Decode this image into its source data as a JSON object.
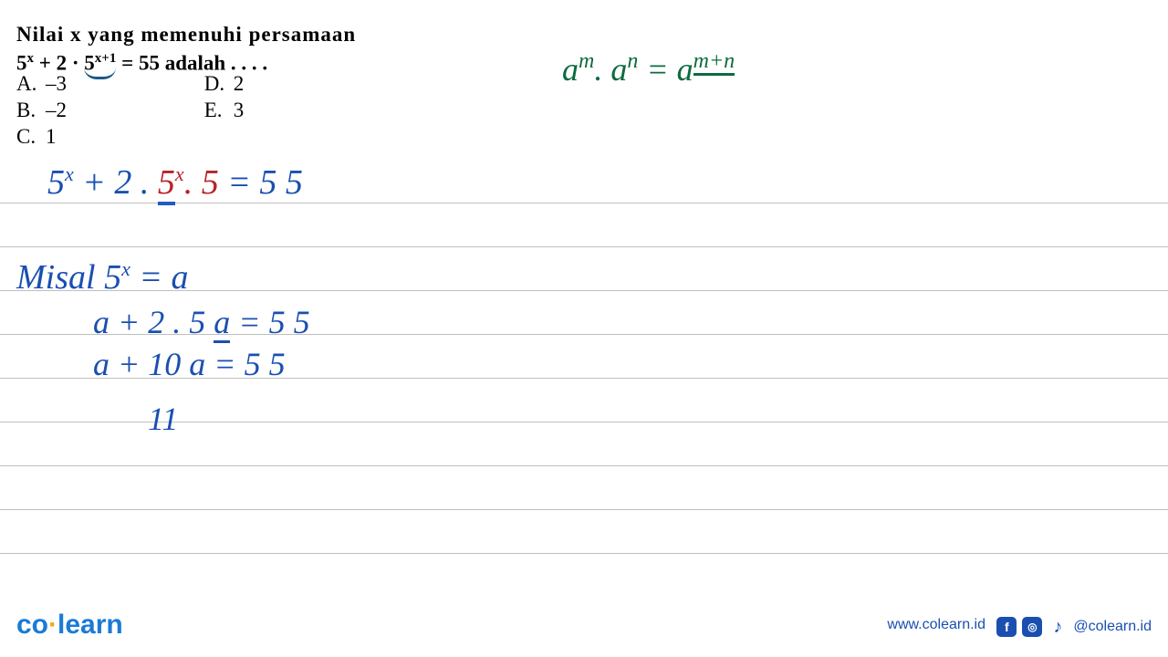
{
  "question": {
    "prompt": "Nilai  x  yang  memenuhi  persamaan",
    "equation_prefix": "5",
    "equation_exp1": "x",
    "equation_mid": " + 2 · ",
    "equation_base2": "5",
    "equation_exp2": "x+1",
    "equation_suffix": " = 55 adalah . . . .",
    "text_color": "#000000",
    "fontsize": 23
  },
  "options": {
    "A": "–3",
    "B": "–2",
    "C": "1",
    "D": "2",
    "E": "3"
  },
  "rule_annotation": {
    "color": "#0d6b3f",
    "a1": "a",
    "m": "m",
    "dot": ". ",
    "a2": "a",
    "n": "n",
    "eq": " = ",
    "a3": "a",
    "mn": "m+n"
  },
  "handwriting": {
    "colors": {
      "blue": "#1a4fb0",
      "red": "#b8222a",
      "green": "#0d6b3f"
    },
    "line1": {
      "p1": "5",
      "p1_sup": "x",
      "p2": " + 2 . ",
      "p3": "5",
      "p3_sup": "x",
      "p4": ". 5",
      "p5": "  =  5 5"
    },
    "misal": {
      "label": "Misal   ",
      "lhs_base": "5",
      "lhs_sup": "x",
      "eq": " =  a"
    },
    "sub1": "a + 2 . 5 a   = 5 5",
    "sub2": "a + 10 a  =  5 5",
    "sub3": "11"
  },
  "ruled_paper": {
    "line_color": "#bfbfbf",
    "line_height": 48,
    "line_count": 10
  },
  "footer": {
    "logo_co": "co",
    "logo_dot": "·",
    "logo_learn": "learn",
    "url": "www.colearn.id",
    "handle": "@colearn.id",
    "brand_color": "#1a7bd6",
    "accent_color": "#f5a623",
    "link_color": "#1a4fb0"
  }
}
